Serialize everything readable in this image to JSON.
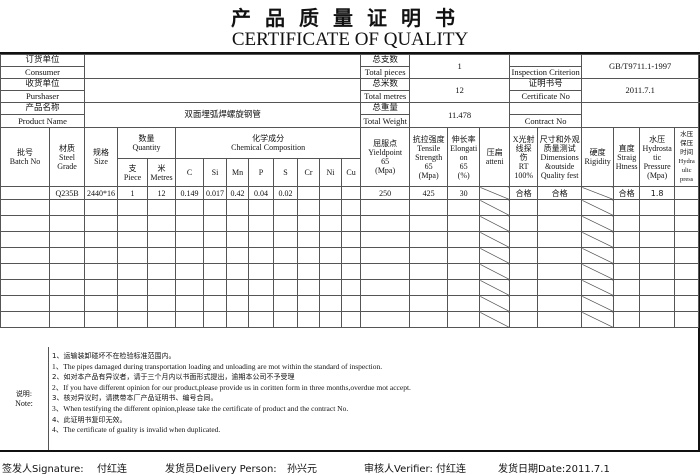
{
  "title_cn": "产品质量证明书",
  "title_en": "CERTIFICATE OF QUALITY",
  "top": {
    "consumer_cn": "订货单位",
    "consumer_en": "Consumer",
    "consumer_value": "",
    "purchaser_cn": "收货单位",
    "purchaser_en": "Purshaser",
    "purchaser_value": "",
    "product_cn": "产品名称",
    "product_en": "Product Name",
    "product_value": "双面埋弧焊螺旋钢管",
    "pieces_cn": "总支数",
    "pieces_en": "Total pieces",
    "pieces_value": "1",
    "metres_cn": "总米数",
    "metres_en": "Total metres",
    "metres_value": "12",
    "weight_cn": "总重量",
    "weight_en": "Total Weight",
    "weight_value": "11.478",
    "criterion_en": "Inspection Criterion",
    "criterion_value": "GB/T9711.1-1997",
    "cert_cn": "证明书号",
    "cert_en": "Certificate No",
    "cert_value": "2011.7.1",
    "contract_en": "Contract No",
    "contract_value": ""
  },
  "headers": {
    "batch": "批号\nBatch No",
    "grade": "材质\nSteel\nGrade",
    "size": "规格\nSize",
    "quantity": "数量\nQuantity",
    "piece": "支\nPiece",
    "metres": "米\nMetres",
    "chem": "化学成分\nChemical Composition",
    "elements": [
      "C",
      "Si",
      "Mn",
      "P",
      "S",
      "Cr",
      "Ni",
      "Cu"
    ],
    "yield": "屈服点\nYieldpoint\n65\n(Mpa)",
    "tensile": "抗拉强度\nTensile\nStrength\n65\n(Mpa)",
    "elong": "伸长率\nElongati\non\n65\n(%)",
    "flatten": "压扁\natteni",
    "rt": "X光射\n线探\n伤\nRT\n100%",
    "dim": "尺寸和外观\n质量测试\nDimensions\n&outside\nQuality fest",
    "rigidity": "硬度\nRigidity",
    "straight": "直度\nStraig\nHtness",
    "hydro": "水压\nHydrosta\ntic\nPressure\n(Mpa)",
    "time": "水压\n保压\n时间\nHydra\nulic\npress"
  },
  "rows": [
    {
      "batch": "",
      "grade": "Q235B",
      "size": "2440*16",
      "piece": "1",
      "metres": "12",
      "C": "0.149",
      "Si": "0.017",
      "Mn": "0.42",
      "P": "0.04",
      "S": "0.02",
      "Cr": "",
      "Ni": "",
      "Cu": "",
      "yield": "250",
      "tensile": "425",
      "elong": "30",
      "rt": "合格",
      "dim": "合格",
      "straight": "合格",
      "hydro": "1.8",
      "time": ""
    }
  ],
  "empty_rows": 8,
  "notes": {
    "label_cn": "说明:",
    "label_en": "Note:",
    "items": [
      {
        "text": "1、运输装卸碰坏不在检验标准范围内。",
        "cn": true
      },
      {
        "text": "1、The pipes damaged during transportation loading and unloading are mot within the standard of inspection.",
        "cn": false
      },
      {
        "text": "2、如对本产品有异议者，请于三个月内以书面形式提出，逾期本公司不予受理",
        "cn": true
      },
      {
        "text": "2、If you have different opinion for our product,please provide us in coritten form in three months,overdue mot accept.",
        "cn": false
      },
      {
        "text": "3、核对异议时，请携带本厂产品证明书、编号合同。",
        "cn": true
      },
      {
        "text": "3、When testifying the different opinion,please take the certificate of product and the contract No.",
        "cn": false
      },
      {
        "text": "4、此证明书复印无效。",
        "cn": true
      },
      {
        "text": "4、The certificate of guality is invalid when duplicated.",
        "cn": false
      }
    ]
  },
  "signatures": {
    "signature_label": "签发人Signature:",
    "signature_name": "付红连",
    "delivery_label": "发货员Delivery  Person:",
    "delivery_name": "孙兴元",
    "verifier": "审核人Verifier: 付红连",
    "date": "发货日期Date:2011.7.1"
  }
}
